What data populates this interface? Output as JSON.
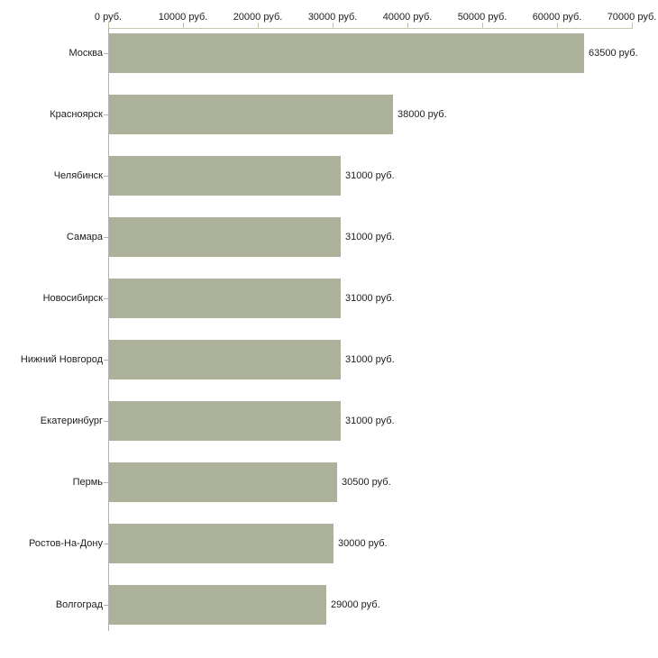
{
  "chart_data": {
    "type": "bar",
    "orientation": "horizontal",
    "title": "",
    "xlabel": "",
    "ylabel": "",
    "unit": "руб.",
    "categories": [
      "Москва",
      "Красноярск",
      "Челябинск",
      "Самара",
      "Новосибирск",
      "Нижний Новгород",
      "Екатеринбург",
      "Пермь",
      "Ростов-На-Дону",
      "Волгоград"
    ],
    "values": [
      63500,
      38000,
      31000,
      31000,
      31000,
      31000,
      31000,
      30500,
      30000,
      29000
    ],
    "value_labels": [
      "63500 руб.",
      "38000 руб.",
      "31000 руб.",
      "31000 руб.",
      "31000 руб.",
      "31000 руб.",
      "31000 руб.",
      "30500 руб.",
      "30000 руб.",
      "29000 руб."
    ],
    "x_axis": {
      "position": "top",
      "min": 0,
      "max": 70000,
      "tick_interval": 10000,
      "tick_labels": [
        "0 руб.",
        "10000 руб.",
        "20000 руб.",
        "30000 руб.",
        "40000 руб.",
        "50000 руб.",
        "60000 руб.",
        "70000 руб."
      ]
    },
    "legend": null,
    "grid": false,
    "colors": {
      "bar_fill": "#acb29a",
      "x_axis_line": "#c9c9b2",
      "x_tick": "#c2c2a8",
      "y_axis_line": "#b3b3b3",
      "text": "#1c1c1c",
      "background": "#ffffff"
    }
  }
}
